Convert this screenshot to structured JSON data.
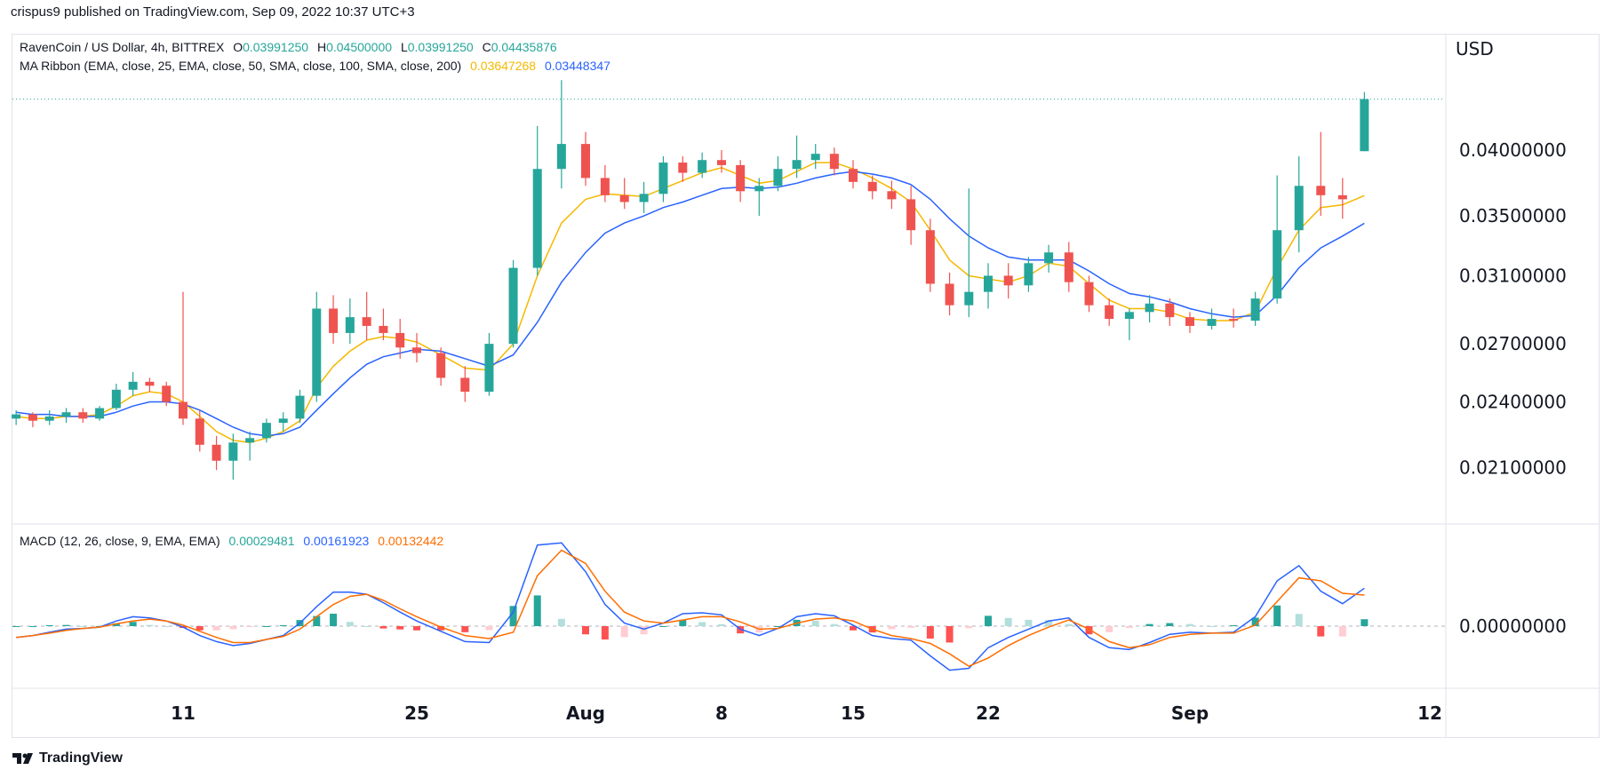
{
  "header": {
    "publisher": "crispus9 published on TradingView.com, Sep 09, 2022 10:37 UTC+3"
  },
  "legend": {
    "symbol": "RavenCoin / US Dollar, 4h, BITTREX",
    "o_label": "O",
    "o": "0.03991250",
    "h_label": "H",
    "h": "0.04500000",
    "l_label": "L",
    "l": "0.03991250",
    "c_label": "C",
    "c": "0.04435876",
    "ma_title": "MA Ribbon (EMA, close, 25, EMA, close, 50, SMA, close, 100, SMA, close, 200)",
    "ma1": "0.03647268",
    "ma2": "0.03448347",
    "macd_title": "MACD (12, 26, close, 9, EMA, EMA)",
    "macd_hist": "0.00029481",
    "macd_line": "0.00161923",
    "macd_signal": "0.00132442"
  },
  "logo": {
    "text": "TradingView"
  },
  "colors": {
    "up": "#26a69a",
    "down": "#ef5350",
    "ma1": "#f5b800",
    "ma2": "#2962ff",
    "macd": "#2962ff",
    "signal": "#ff6d00",
    "hist_up": "#26a69a",
    "hist_up_weak": "#b2dfdb",
    "hist_down": "#ff5252",
    "hist_down_weak": "#ffcdd2"
  },
  "chart_data": {
    "type": "candlestick",
    "currency": "USD",
    "y_scale": "log",
    "y_ticks": [
      "0.04000000",
      "0.03500000",
      "0.03100000",
      "0.02700000",
      "0.02400000",
      "0.02100000"
    ],
    "x_ticks": [
      {
        "date": "2022-07-11",
        "label": "11"
      },
      {
        "date": "2022-07-25",
        "label": "25"
      },
      {
        "date": "2022-08-01",
        "label": "Aug"
      },
      {
        "date": "2022-08-08",
        "label": "8"
      },
      {
        "date": "2022-08-15",
        "label": "15"
      },
      {
        "date": "2022-08-22",
        "label": "22"
      },
      {
        "date": "2022-09-01",
        "label": "Sep"
      },
      {
        "date": "2022-09-12",
        "label": "12"
      }
    ],
    "last_price": 0.04435876,
    "macd_ticks": [
      "0.00000000"
    ],
    "dates": [
      "2022-07-01",
      "2022-07-02",
      "2022-07-03",
      "2022-07-04",
      "2022-07-05",
      "2022-07-06",
      "2022-07-07",
      "2022-07-08",
      "2022-07-09",
      "2022-07-10",
      "2022-07-11",
      "2022-07-12",
      "2022-07-13",
      "2022-07-14",
      "2022-07-15",
      "2022-07-16",
      "2022-07-17",
      "2022-07-18",
      "2022-07-19",
      "2022-07-20",
      "2022-07-21",
      "2022-07-22",
      "2022-07-23",
      "2022-07-24",
      "2022-07-25",
      "2022-07-26",
      "2022-07-27",
      "2022-07-28",
      "2022-07-29",
      "2022-07-30",
      "2022-07-31",
      "2022-08-01",
      "2022-08-02",
      "2022-08-03",
      "2022-08-04",
      "2022-08-05",
      "2022-08-06",
      "2022-08-07",
      "2022-08-08",
      "2022-08-09",
      "2022-08-10",
      "2022-08-11",
      "2022-08-12",
      "2022-08-13",
      "2022-08-14",
      "2022-08-15",
      "2022-08-16",
      "2022-08-17",
      "2022-08-18",
      "2022-08-19",
      "2022-08-20",
      "2022-08-21",
      "2022-08-22",
      "2022-08-23",
      "2022-08-24",
      "2022-08-25",
      "2022-08-26",
      "2022-08-27",
      "2022-08-28",
      "2022-08-29",
      "2022-08-30",
      "2022-08-31",
      "2022-09-01",
      "2022-09-02",
      "2022-09-03",
      "2022-09-04",
      "2022-09-05",
      "2022-09-06",
      "2022-09-07",
      "2022-09-08",
      "2022-09-09"
    ],
    "ohlc": [
      [
        0.0232,
        0.0236,
        0.0229,
        0.0234
      ],
      [
        0.0234,
        0.0235,
        0.0228,
        0.0231
      ],
      [
        0.0231,
        0.0236,
        0.0229,
        0.0233
      ],
      [
        0.0233,
        0.0237,
        0.023,
        0.0235
      ],
      [
        0.0235,
        0.0237,
        0.023,
        0.0232
      ],
      [
        0.0232,
        0.0238,
        0.0231,
        0.0237
      ],
      [
        0.0237,
        0.0249,
        0.0236,
        0.0246
      ],
      [
        0.0246,
        0.0255,
        0.0243,
        0.025
      ],
      [
        0.025,
        0.0252,
        0.0245,
        0.0248
      ],
      [
        0.0248,
        0.025,
        0.0238,
        0.024
      ],
      [
        0.024,
        0.03,
        0.0229,
        0.0232
      ],
      [
        0.0232,
        0.0236,
        0.0217,
        0.022
      ],
      [
        0.022,
        0.0224,
        0.0209,
        0.0213
      ],
      [
        0.0213,
        0.0225,
        0.0205,
        0.0221
      ],
      [
        0.0221,
        0.0226,
        0.0213,
        0.0223
      ],
      [
        0.0223,
        0.0232,
        0.0221,
        0.023
      ],
      [
        0.023,
        0.0235,
        0.0226,
        0.0232
      ],
      [
        0.0232,
        0.0246,
        0.023,
        0.0243
      ],
      [
        0.0243,
        0.03,
        0.024,
        0.029
      ],
      [
        0.029,
        0.0298,
        0.027,
        0.0276
      ],
      [
        0.0276,
        0.0296,
        0.027,
        0.0285
      ],
      [
        0.0285,
        0.03,
        0.0272,
        0.028
      ],
      [
        0.028,
        0.029,
        0.0272,
        0.0276
      ],
      [
        0.0276,
        0.0284,
        0.0262,
        0.0268
      ],
      [
        0.0268,
        0.0276,
        0.026,
        0.0265
      ],
      [
        0.0265,
        0.0268,
        0.0248,
        0.0252
      ],
      [
        0.0252,
        0.0258,
        0.024,
        0.0245
      ],
      [
        0.0245,
        0.0276,
        0.0243,
        0.027
      ],
      [
        0.027,
        0.032,
        0.0268,
        0.0315
      ],
      [
        0.0315,
        0.042,
        0.031,
        0.0385
      ],
      [
        0.0385,
        0.0461,
        0.037,
        0.0405
      ],
      [
        0.0405,
        0.0415,
        0.0372,
        0.0378
      ],
      [
        0.0378,
        0.0388,
        0.036,
        0.0365
      ],
      [
        0.0365,
        0.0378,
        0.0355,
        0.036
      ],
      [
        0.036,
        0.0375,
        0.0352,
        0.0366
      ],
      [
        0.0366,
        0.0395,
        0.036,
        0.039
      ],
      [
        0.039,
        0.0395,
        0.0375,
        0.0382
      ],
      [
        0.0382,
        0.0398,
        0.0378,
        0.0392
      ],
      [
        0.0392,
        0.04,
        0.0382,
        0.0388
      ],
      [
        0.0388,
        0.0392,
        0.036,
        0.0368
      ],
      [
        0.0368,
        0.0378,
        0.035,
        0.0372
      ],
      [
        0.0372,
        0.0395,
        0.0368,
        0.0385
      ],
      [
        0.0385,
        0.0412,
        0.0378,
        0.0392
      ],
      [
        0.0392,
        0.0405,
        0.0385,
        0.0397
      ],
      [
        0.0397,
        0.0402,
        0.038,
        0.0385
      ],
      [
        0.0385,
        0.0392,
        0.037,
        0.0375
      ],
      [
        0.0375,
        0.038,
        0.0362,
        0.0368
      ],
      [
        0.0368,
        0.0376,
        0.0355,
        0.0362
      ],
      [
        0.0362,
        0.0372,
        0.033,
        0.034
      ],
      [
        0.034,
        0.0348,
        0.03,
        0.0305
      ],
      [
        0.0305,
        0.0312,
        0.0286,
        0.0292
      ],
      [
        0.0292,
        0.037,
        0.0285,
        0.03
      ],
      [
        0.03,
        0.0318,
        0.029,
        0.031
      ],
      [
        0.031,
        0.0318,
        0.0296,
        0.0304
      ],
      [
        0.0304,
        0.0322,
        0.03,
        0.0318
      ],
      [
        0.0318,
        0.033,
        0.0312,
        0.0325
      ],
      [
        0.0325,
        0.0332,
        0.03,
        0.0306
      ],
      [
        0.0306,
        0.031,
        0.0288,
        0.0292
      ],
      [
        0.0292,
        0.0296,
        0.028,
        0.0284
      ],
      [
        0.0284,
        0.029,
        0.0272,
        0.0288
      ],
      [
        0.0288,
        0.0298,
        0.0282,
        0.0293
      ],
      [
        0.0293,
        0.0296,
        0.028,
        0.0285
      ],
      [
        0.0285,
        0.0288,
        0.0276,
        0.028
      ],
      [
        0.028,
        0.029,
        0.0278,
        0.0284
      ],
      [
        0.0284,
        0.029,
        0.0279,
        0.0283
      ],
      [
        0.0283,
        0.03,
        0.028,
        0.0296
      ],
      [
        0.0296,
        0.038,
        0.0293,
        0.034
      ],
      [
        0.034,
        0.0395,
        0.0325,
        0.0372
      ],
      [
        0.0372,
        0.0415,
        0.035,
        0.0365
      ],
      [
        0.0365,
        0.0378,
        0.0348,
        0.0362
      ],
      [
        0.0399125,
        0.045,
        0.0399125,
        0.04435876
      ]
    ],
    "ma_ribbon": [
      {
        "name": "EMA 25",
        "values": [
          0.0233,
          0.0232,
          0.0232,
          0.0233,
          0.0233,
          0.0234,
          0.0238,
          0.0243,
          0.0245,
          0.0244,
          0.024,
          0.0233,
          0.0226,
          0.0222,
          0.0221,
          0.0223,
          0.0226,
          0.0231,
          0.0247,
          0.0258,
          0.0266,
          0.0272,
          0.0274,
          0.0273,
          0.0271,
          0.0264,
          0.0257,
          0.0256,
          0.027,
          0.031,
          0.0345,
          0.0362,
          0.0366,
          0.0365,
          0.0364,
          0.037,
          0.0376,
          0.0382,
          0.0386,
          0.038,
          0.0374,
          0.0376,
          0.0383,
          0.039,
          0.039,
          0.0385,
          0.0378,
          0.037,
          0.036,
          0.034,
          0.032,
          0.031,
          0.0308,
          0.0306,
          0.031,
          0.0318,
          0.0316,
          0.0305,
          0.0295,
          0.029,
          0.029,
          0.0288,
          0.0284,
          0.0283,
          0.0283,
          0.0288,
          0.0315,
          0.034,
          0.0356,
          0.0358,
          0.03647268
        ]
      },
      {
        "name": "EMA 50",
        "values": [
          0.0235,
          0.0234,
          0.0234,
          0.0233,
          0.0233,
          0.0233,
          0.0235,
          0.0238,
          0.024,
          0.024,
          0.0239,
          0.0236,
          0.0232,
          0.0228,
          0.0225,
          0.0224,
          0.0225,
          0.0228,
          0.0236,
          0.0244,
          0.0252,
          0.0259,
          0.0263,
          0.0265,
          0.0267,
          0.0266,
          0.0262,
          0.0258,
          0.0264,
          0.0282,
          0.0306,
          0.0325,
          0.0338,
          0.0345,
          0.035,
          0.0356,
          0.036,
          0.0365,
          0.037,
          0.0371,
          0.037,
          0.0371,
          0.0374,
          0.0378,
          0.0381,
          0.0383,
          0.0381,
          0.0378,
          0.0373,
          0.0362,
          0.0348,
          0.0336,
          0.0328,
          0.0322,
          0.032,
          0.032,
          0.032,
          0.0313,
          0.0305,
          0.0299,
          0.0297,
          0.0294,
          0.029,
          0.0287,
          0.0285,
          0.0286,
          0.0298,
          0.0315,
          0.0328,
          0.0336,
          0.03448347
        ]
      }
    ],
    "macd": [
      -0.00048,
      -0.0004,
      -0.00026,
      -0.00013,
      -0.0001,
      -4e-05,
      0.00022,
      0.0004,
      0.00035,
      0.00022,
      -4e-05,
      -0.0004,
      -0.00066,
      -0.00083,
      -0.00074,
      -0.00057,
      -0.0004,
      0.00013,
      0.00083,
      0.00145,
      0.00145,
      0.00136,
      0.001,
      0.0006,
      0.00022,
      -0.00022,
      -0.00066,
      -0.0007,
      0.0006,
      0.00346,
      0.00355,
      0.00232,
      0.00092,
      0.00013,
      -0.00013,
      0.00013,
      0.00053,
      0.00057,
      0.00048,
      -0.00013,
      -0.0004,
      -0.0001,
      0.0004,
      0.00053,
      0.00044,
      4e-05,
      -0.0004,
      -0.00053,
      -0.0006,
      -0.00127,
      -0.00188,
      -0.0018,
      -0.00092,
      -0.00048,
      -0.00013,
      0.00022,
      0.00035,
      -0.00048,
      -0.00092,
      -0.001,
      -0.0007,
      -0.00035,
      -0.00026,
      -0.0003,
      -0.00026,
      0.0004,
      0.00193,
      0.00258,
      0.00149,
      0.00096,
      0.00161923
    ],
    "signal": [
      -0.00048,
      -0.0004,
      -0.0003,
      -0.00018,
      -0.0001,
      -4e-05,
      0.0001,
      0.00022,
      0.0003,
      0.00022,
      4e-05,
      -0.00022,
      -0.00048,
      -0.0007,
      -0.0007,
      -0.00057,
      -0.00044,
      -0.00013,
      0.0004,
      0.00092,
      0.00127,
      0.00136,
      0.0011,
      0.00074,
      0.0004,
      -4e-05,
      -0.0004,
      -0.00053,
      -0.00026,
      0.00215,
      0.00324,
      0.00267,
      0.00149,
      0.0006,
      0.00022,
      0.00013,
      0.00026,
      0.0004,
      0.0004,
      0.00018,
      -0.00013,
      -0.0001,
      0.00013,
      0.0003,
      0.00035,
      0.00022,
      -0.00013,
      -0.0004,
      -0.00053,
      -0.00074,
      -0.00118,
      -0.00171,
      -0.00136,
      -0.00083,
      -0.0004,
      -4e-05,
      0.00026,
      -0.00013,
      -0.00066,
      -0.00092,
      -0.00079,
      -0.00048,
      -0.00035,
      -0.0003,
      -0.0003,
      4e-05,
      0.00105,
      0.00206,
      0.00193,
      0.0014,
      0.00132442
    ]
  }
}
